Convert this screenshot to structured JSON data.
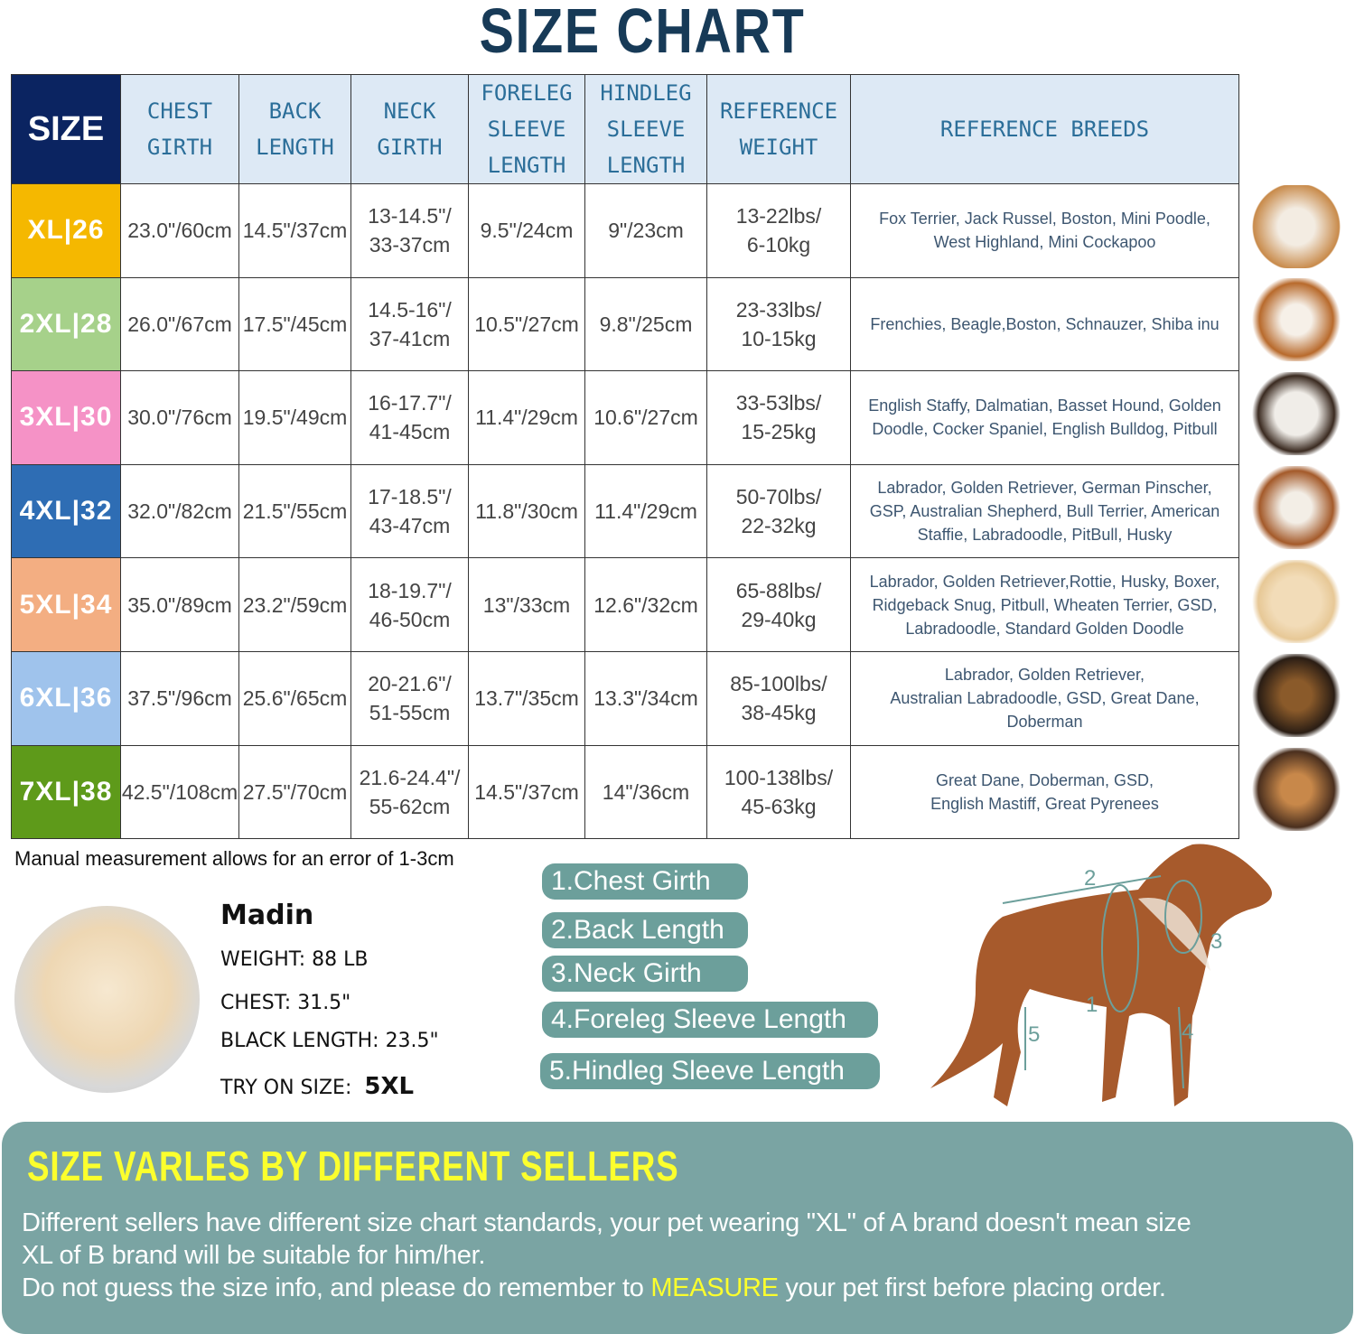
{
  "title": "SIZE CHART",
  "table": {
    "headers": [
      "SIZE",
      "CHEST\nGIRTH",
      "BACK\nLENGTH",
      "NECK\nGIRTH",
      "FORELEG\nSLEEVE\nLENGTH",
      "HINDLEG\nSLEEVE\nLENGTH",
      "REFERENCE\nWEIGHT",
      "REFERENCE  BREEDS"
    ],
    "rows": [
      {
        "size": "XL|26",
        "color": "#f5b800",
        "chest": "23.0\"/60cm",
        "back": "14.5\"/37cm",
        "neck": "13-14.5\"/\n33-37cm",
        "foreleg": "9.5\"/24cm",
        "hindleg": "9\"/23cm",
        "weight": "13-22lbs/\n6-10kg",
        "breeds": "Fox Terrier, Jack Russel, Boston, Mini Poodle,\nWest Highland, Mini Cockapoo"
      },
      {
        "size": "2XL|28",
        "color": "#a6d18a",
        "chest": "26.0\"/67cm",
        "back": "17.5\"/45cm",
        "neck": "14.5-16\"/\n37-41cm",
        "foreleg": "10.5\"/27cm",
        "hindleg": "9.8\"/25cm",
        "weight": "23-33lbs/\n10-15kg",
        "breeds": "Frenchies, Beagle,Boston, Schnauzer, Shiba inu"
      },
      {
        "size": "3XL|30",
        "color": "#f592c6",
        "chest": "30.0\"/76cm",
        "back": "19.5\"/49cm",
        "neck": "16-17.7\"/\n41-45cm",
        "foreleg": "11.4\"/29cm",
        "hindleg": "10.6\"/27cm",
        "weight": "33-53lbs/\n15-25kg",
        "breeds": "English Staffy, Dalmatian, Basset Hound, Golden\nDoodle, Cocker Spaniel, English Bulldog, Pitbull"
      },
      {
        "size": "4XL|32",
        "color": "#2e6db4",
        "chest": "32.0\"/82cm",
        "back": "21.5\"/55cm",
        "neck": "17-18.5\"/\n43-47cm",
        "foreleg": "11.8\"/30cm",
        "hindleg": "11.4\"/29cm",
        "weight": "50-70lbs/\n22-32kg",
        "breeds": "Labrador, Golden Retriever, German Pinscher,\nGSP, Australian Shepherd, Bull Terrier, American\nStaffie, Labradoodle, PitBull, Husky"
      },
      {
        "size": "5XL|34",
        "color": "#f3ae82",
        "chest": "35.0\"/89cm",
        "back": "23.2\"/59cm",
        "neck": "18-19.7\"/\n46-50cm",
        "foreleg": "13\"/33cm",
        "hindleg": "12.6\"/32cm",
        "weight": "65-88lbs/\n29-40kg",
        "breeds": "Labrador, Golden Retriever,Rottie, Husky, Boxer,\nRidgeback Snug, Pitbull, Wheaten Terrier, GSD,\nLabradoodle,  Standard Golden Doodle"
      },
      {
        "size": "6XL|36",
        "color": "#9fc3ec",
        "chest": "37.5\"/96cm",
        "back": "25.6\"/65cm",
        "neck": "20-21.6\"/\n51-55cm",
        "foreleg": "13.7\"/35cm",
        "hindleg": "13.3\"/34cm",
        "weight": "85-100lbs/\n38-45kg",
        "breeds": "Labrador, Golden Retriever,\nAustralian Labradoodle, GSD, Great Dane,\nDoberman"
      },
      {
        "size": "7XL|38",
        "color": "#5e9a1a",
        "chest": "42.5\"/108cm",
        "back": "27.5\"/70cm",
        "neck": "21.6-24.4\"/\n55-62cm",
        "foreleg": "14.5\"/37cm",
        "hindleg": "14\"/36cm",
        "weight": "100-138lbs/\n45-63kg",
        "breeds": "Great Dane, Doberman, GSD,\nEnglish Mastiff, Great Pyrenees"
      }
    ]
  },
  "note": "Manual measurement allows for an error of 1-3cm",
  "example": {
    "name": "Madin",
    "weight": "WEIGHT: 88 LB",
    "chest": "CHEST: 31.5\"",
    "length": "BLACK LENGTH: 23.5\"",
    "try_label": "TRY ON SIZE:",
    "try_size": "5XL"
  },
  "measures": [
    "1.Chest Girth",
    "2.Back Length",
    "3.Neck Girth",
    "4.Foreleg Sleeve Length",
    "5.Hindleg Sleeve Length"
  ],
  "diagram_labels": [
    "1",
    "2",
    "3",
    "4",
    "5"
  ],
  "panel": {
    "title": "SIZE VARLES BY DIFFERENT SELLERS",
    "line1": "Different sellers have different size chart standards, your pet wearing \"XL\" of A brand doesn't mean size",
    "line2": " XL of B brand will be suitable for him/her.",
    "line3a": "Do not guess the size info, and please do remember to ",
    "line3b": "MEASURE",
    "line3c": " your pet first before placing order."
  }
}
